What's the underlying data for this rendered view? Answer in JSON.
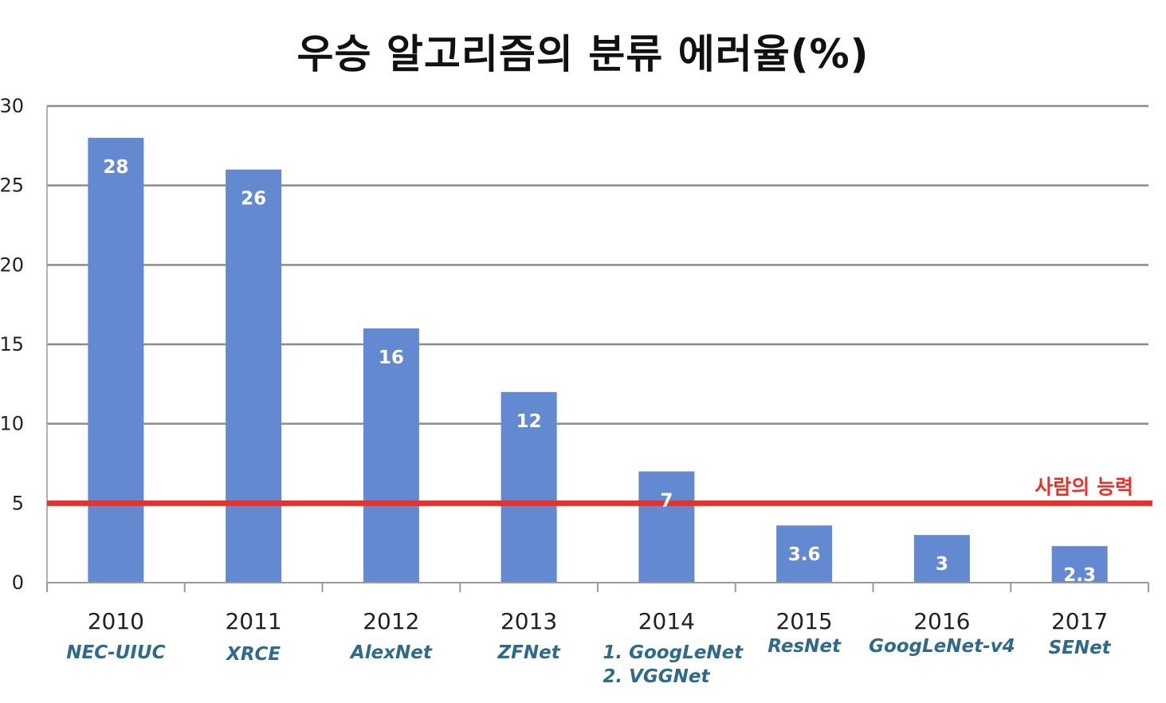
{
  "chart_data": {
    "type": "bar",
    "title": "우승 알고리즘의 분류 에러율(%)",
    "categories": [
      "2010",
      "2011",
      "2012",
      "2013",
      "2014",
      "2015",
      "2016",
      "2017"
    ],
    "algorithms": [
      [
        "NEC-UIUC"
      ],
      [
        "XRCE"
      ],
      [
        "AlexNet"
      ],
      [
        "ZFNet"
      ],
      [
        "1. GoogLeNet",
        "2. VGGNet"
      ],
      [
        "ResNet"
      ],
      [
        "GoogLeNet-v4"
      ],
      [
        "SENet"
      ]
    ],
    "values": [
      28,
      26,
      16,
      12,
      7,
      3.6,
      3,
      2.3
    ],
    "value_labels": [
      "28",
      "26",
      "16",
      "12",
      "7",
      "3.6",
      "3",
      "2.3"
    ],
    "ylim": [
      0,
      30
    ],
    "yticks": [
      0,
      5,
      10,
      15,
      20,
      25,
      30
    ],
    "grid": true,
    "reference_line": {
      "value": 5,
      "label": "사람의 능력",
      "color": "#e8312b"
    },
    "colors": {
      "bar": "#6389d0",
      "grid": "#8c8c8c",
      "algorithm_text": "#2f6a8a",
      "value_text": "#ffffff"
    }
  }
}
